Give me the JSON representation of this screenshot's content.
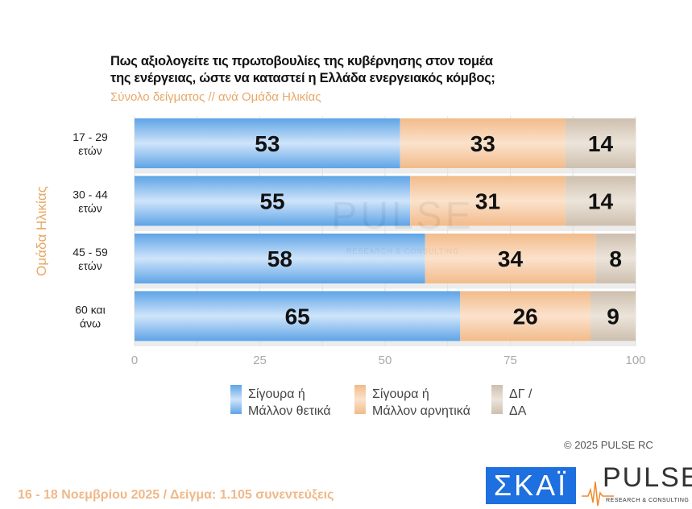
{
  "chart_data": {
    "type": "bar",
    "orientation": "horizontal",
    "stacked": true,
    "title": "Πως αξιολογείτε τις πρωτοβουλίες της κυβέρνησης στον τομέα της ενέργειας, ώστε να καταστεί η Ελλάδα ενεργειακός κόμβος;",
    "title_lines": [
      "Πως αξιολογείτε τις πρωτοβουλίες της κυβέρνησης στον τομέα",
      "της ενέργειας, ώστε να καταστεί η Ελλάδα ενεργειακός κόμβος;"
    ],
    "subtitle": "Σύνολο δείγματος // ανά Ομάδα Ηλικίας",
    "ylabel": "Ομάδα Ηλικίας",
    "categories": [
      [
        "17 - 29",
        "ετών"
      ],
      [
        "30 - 44",
        "ετών"
      ],
      [
        "45 - 59",
        "ετών"
      ],
      [
        "60 και",
        "άνω"
      ]
    ],
    "series": [
      {
        "name": "Σίγουρα ή Μάλλον θετικά",
        "name_lines": [
          "Σίγουρα ή",
          "Μάλλον θετικά"
        ],
        "color": "#6aaeea",
        "values": [
          53,
          55,
          58,
          65
        ]
      },
      {
        "name": "Σίγουρα ή Μάλλον αρνητικά",
        "name_lines": [
          "Σίγουρα ή",
          "Μάλλον αρνητικά"
        ],
        "color": "#f4c398",
        "values": [
          33,
          31,
          34,
          26
        ]
      },
      {
        "name": "ΔΓ / ΔΑ",
        "name_lines": [
          "ΔΓ /",
          "ΔΑ"
        ],
        "color": "#d5c8b9",
        "values": [
          14,
          14,
          8,
          9
        ]
      }
    ],
    "xlim": [
      0,
      100
    ],
    "xticks": [
      0,
      25,
      50,
      75,
      100
    ],
    "grid": true,
    "legend": "bottom"
  },
  "watermark": "PULSE RESEARCH & CONSULTING",
  "copyright": "© 2025  PULSE RC",
  "footer": "16 - 18 Νοεμβρίου 2025  /  Δείγμα:  1.105 συνεντεύξεις",
  "logos": {
    "skai": "ΣΚΑΪ",
    "pulse": "PULSE",
    "pulse_sub": "RESEARCH & CONSULTING"
  }
}
